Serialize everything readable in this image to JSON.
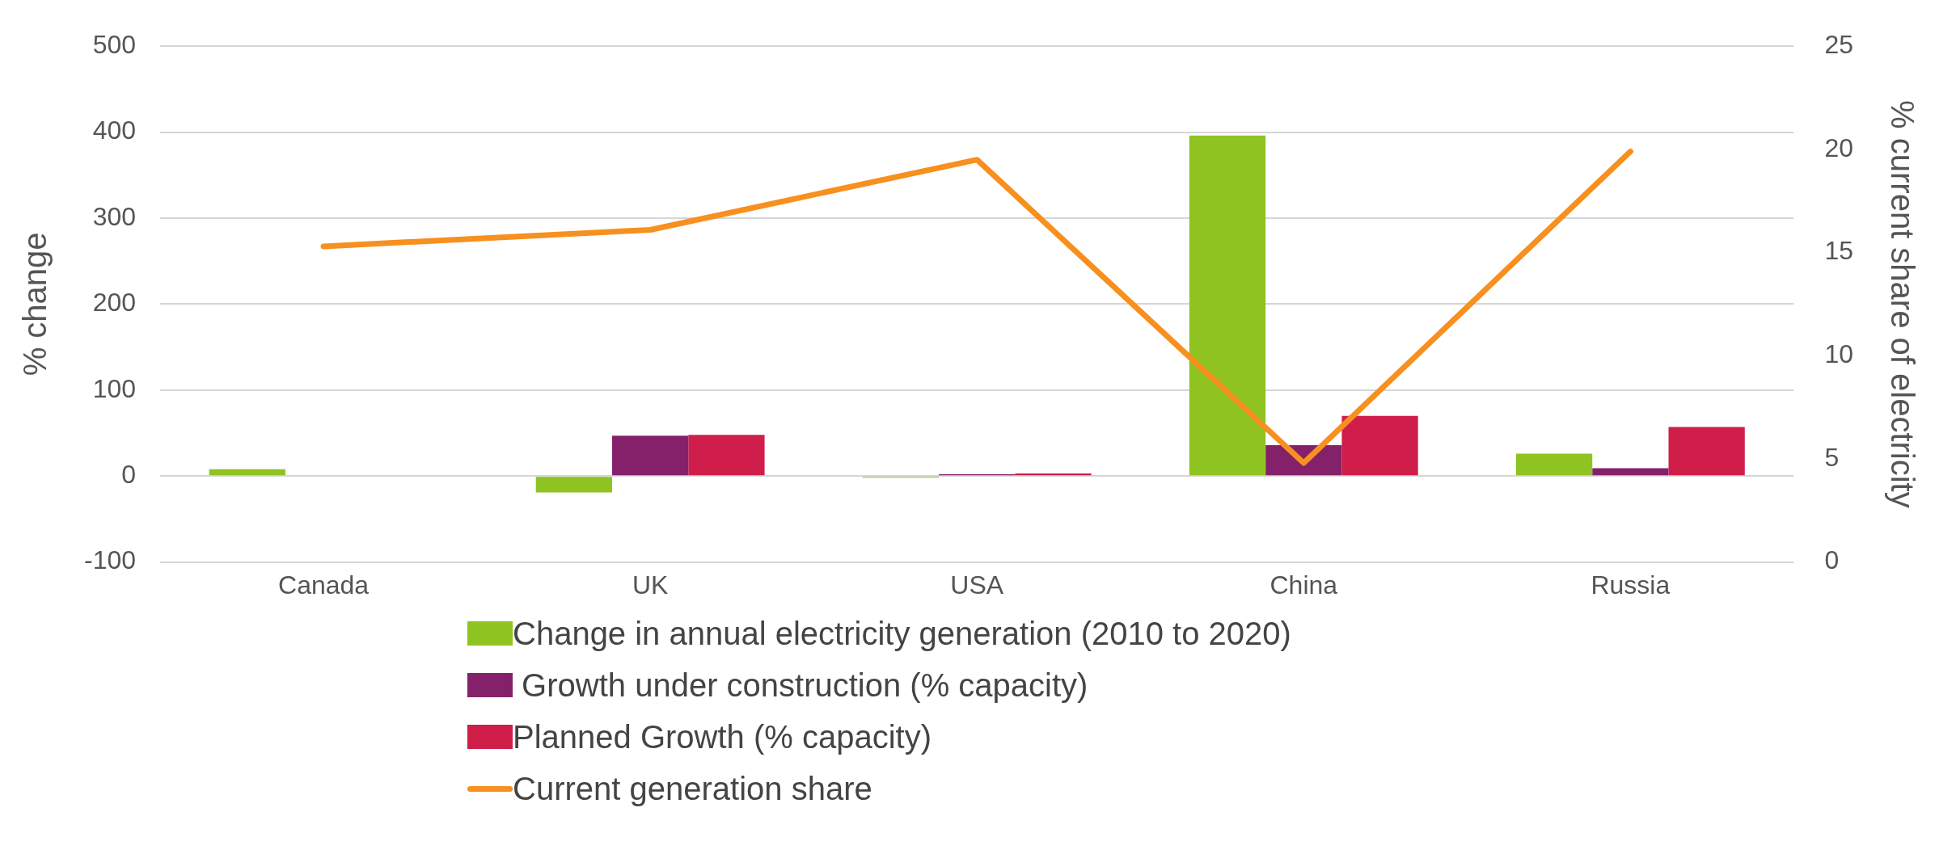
{
  "chart_data": {
    "type": "bar",
    "ylabel": "% change",
    "y2label": "% current share of electricity",
    "categories": [
      "Canada",
      "UK",
      "USA",
      "China",
      "Russia"
    ],
    "series": [
      {
        "name": "Change in annual electricity generation (2010 to 2020)",
        "color": "#8fc322",
        "values": [
          8,
          -19,
          -2,
          396,
          26
        ]
      },
      {
        "name": " Growth under construction (% capacity)",
        "color": "#84216a",
        "values": [
          null,
          47,
          2,
          36,
          9
        ]
      },
      {
        "name": "Planned Growth (% capacity)",
        "color": "#d01e4b",
        "values": [
          null,
          48,
          3,
          70,
          57
        ]
      },
      {
        "name": "Current generation share",
        "type": "line",
        "axis": "y2",
        "color": "#f7901e",
        "values": [
          15.3,
          16.1,
          19.5,
          4.8,
          19.9
        ]
      }
    ],
    "ylim": [
      -100,
      500
    ],
    "yticks": [
      -100,
      0,
      100,
      200,
      300,
      400,
      500
    ],
    "y2lim": [
      0,
      25
    ],
    "y2ticks": [
      0,
      5,
      10,
      15,
      20,
      25
    ],
    "grid": "y",
    "legend": "bottom"
  }
}
